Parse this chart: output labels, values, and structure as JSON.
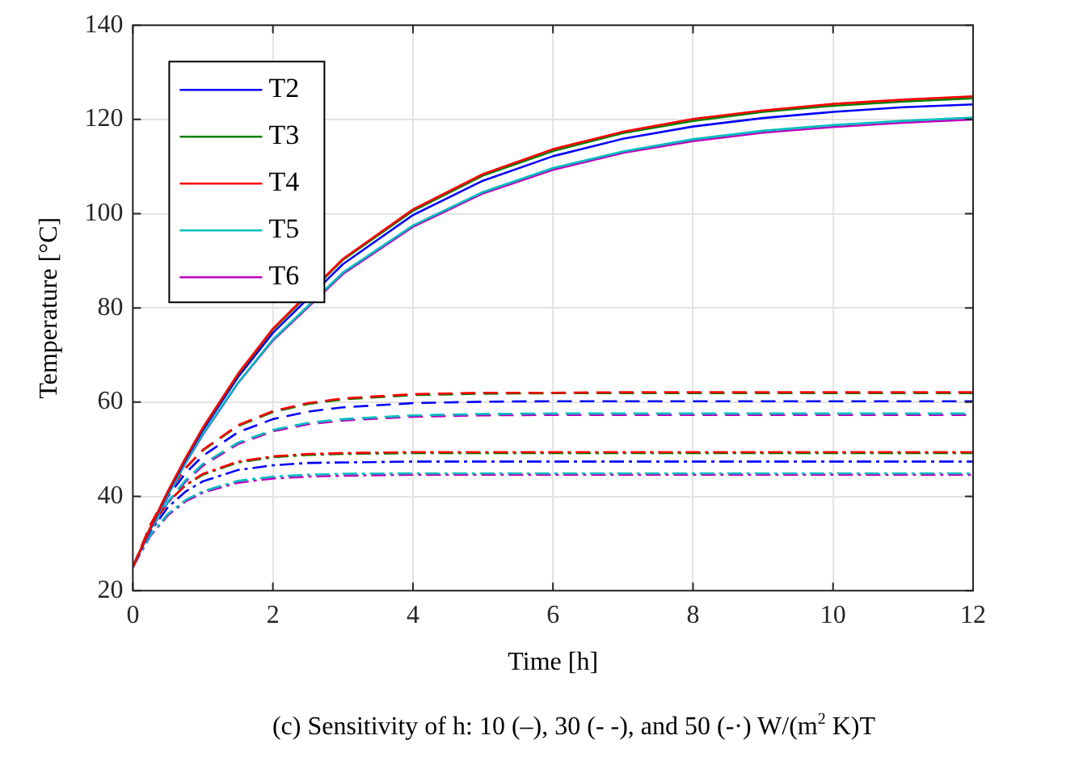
{
  "chart_data": {
    "type": "line",
    "xlabel": "Time [h]",
    "ylabel": "Temperature [°C]",
    "annotations": [
      "(c) Sensitivity of h: 10 (–), 30 (- -), and 50 (-·) W/(m$^{2}$ K)T"
    ],
    "x": [
      0,
      0.25,
      0.5,
      0.75,
      1,
      1.5,
      2,
      2.5,
      3,
      4,
      5,
      6,
      7,
      8,
      9,
      10,
      11,
      12
    ],
    "xlim": [
      0,
      12
    ],
    "xticks": [
      0,
      2,
      4,
      6,
      8,
      10,
      12
    ],
    "ylim": [
      20,
      140
    ],
    "yticks": [
      20,
      40,
      60,
      80,
      100,
      120,
      140
    ],
    "grid": true,
    "legend": "top left",
    "marker": "none",
    "series": [
      {
        "name": "T2",
        "color": "#0000ff",
        "line_style": "solid",
        "x": [
          0,
          0.25,
          0.5,
          0.75,
          1,
          1.5,
          2,
          3,
          4,
          5,
          6,
          7,
          8,
          9,
          10,
          11,
          12
        ],
        "values": [
          25,
          33.2,
          40.8,
          47.7,
          54.1,
          65.3,
          74.7,
          89.3,
          99.7,
          107.0,
          112.2,
          115.9,
          118.5,
          120.3,
          121.6,
          122.6,
          123.2
        ]
      },
      {
        "name": "T3",
        "color": "#008000",
        "line_style": "solid",
        "x": [
          0,
          0.25,
          0.5,
          0.75,
          1,
          1.5,
          2,
          3,
          4,
          5,
          6,
          7,
          8,
          9,
          10,
          11,
          12
        ],
        "values": [
          25,
          33.4,
          41.0,
          48.0,
          54.5,
          65.8,
          75.4,
          90.2,
          100.6,
          108.1,
          113.3,
          117.1,
          119.7,
          121.6,
          122.9,
          123.8,
          124.5
        ]
      },
      {
        "name": "T4",
        "color": "#ff0000",
        "line_style": "solid",
        "x": [
          0,
          0.25,
          0.5,
          0.75,
          1,
          1.5,
          2,
          3,
          4,
          5,
          6,
          7,
          8,
          9,
          10,
          11,
          12
        ],
        "values": [
          25,
          33.4,
          41.1,
          48.1,
          54.6,
          66.0,
          75.6,
          90.4,
          100.9,
          108.4,
          113.7,
          117.4,
          120.1,
          121.9,
          123.3,
          124.2,
          124.9
        ]
      },
      {
        "name": "T5",
        "color": "#00bfbf",
        "line_style": "solid",
        "x": [
          0,
          0.25,
          0.5,
          0.75,
          1,
          1.5,
          2,
          3,
          4,
          5,
          6,
          7,
          8,
          9,
          10,
          11,
          12
        ],
        "values": [
          25,
          33.0,
          40.3,
          47.1,
          53.3,
          64.1,
          73.3,
          87.5,
          97.5,
          104.6,
          109.7,
          113.2,
          115.8,
          117.6,
          118.8,
          119.7,
          120.4
        ]
      },
      {
        "name": "T6",
        "color": "#bf00bf",
        "line_style": "solid",
        "x": [
          0,
          0.25,
          0.5,
          0.75,
          1,
          1.5,
          2,
          3,
          4,
          5,
          6,
          7,
          8,
          9,
          10,
          11,
          12
        ],
        "values": [
          25,
          33.0,
          40.3,
          47.0,
          53.1,
          64.0,
          73.1,
          87.2,
          97.2,
          104.3,
          109.3,
          112.9,
          115.4,
          117.2,
          118.4,
          119.3,
          120.0
        ]
      },
      {
        "color": "#0000ff",
        "line_style": "dashed",
        "values": [
          25,
          33.5,
          40.0,
          44.9,
          48.6,
          53.6,
          56.4,
          58.0,
          58.9,
          59.8,
          60.1,
          60.2,
          60.2,
          60.2,
          60.2,
          60.2,
          60.2,
          60.2
        ]
      },
      {
        "color": "#008000",
        "line_style": "dashed",
        "values": [
          25,
          33.9,
          40.7,
          45.9,
          49.8,
          54.9,
          57.9,
          59.6,
          60.6,
          61.5,
          61.8,
          61.9,
          61.9,
          61.9,
          61.9,
          61.9,
          61.9,
          61.9
        ]
      },
      {
        "color": "#ff0000",
        "line_style": "dashed",
        "values": [
          25,
          34.0,
          40.8,
          46.0,
          49.9,
          55.1,
          58.1,
          59.8,
          60.8,
          61.7,
          62.0,
          62.0,
          62.1,
          62.1,
          62.1,
          62.1,
          62.1,
          62.1
        ]
      },
      {
        "color": "#00bfbf",
        "line_style": "dashed",
        "values": [
          25,
          32.9,
          38.9,
          43.4,
          46.9,
          51.4,
          54.1,
          55.6,
          56.4,
          57.2,
          57.5,
          57.6,
          57.6,
          57.6,
          57.6,
          57.6,
          57.6,
          57.6
        ]
      },
      {
        "color": "#bf00bf",
        "line_style": "dashed",
        "values": [
          25,
          32.8,
          38.7,
          43.1,
          46.5,
          51.1,
          53.8,
          55.3,
          56.1,
          56.9,
          57.2,
          57.3,
          57.3,
          57.3,
          57.3,
          57.3,
          57.3,
          57.3
        ]
      },
      {
        "color": "#0000ff",
        "line_style": "dashdot",
        "values": [
          25,
          32.6,
          37.7,
          41.0,
          43.2,
          45.6,
          46.6,
          47.1,
          47.2,
          47.4,
          47.4,
          47.4,
          47.4,
          47.4,
          47.4,
          47.4,
          47.4,
          47.4
        ]
      },
      {
        "color": "#008000",
        "line_style": "dashdot",
        "values": [
          25,
          33.2,
          38.7,
          42.3,
          44.6,
          47.2,
          48.3,
          48.8,
          49.0,
          49.2,
          49.2,
          49.2,
          49.2,
          49.2,
          49.2,
          49.2,
          49.2,
          49.2
        ]
      },
      {
        "color": "#ff0000",
        "line_style": "dashdot",
        "values": [
          25,
          33.3,
          38.8,
          42.4,
          44.8,
          47.4,
          48.5,
          49.0,
          49.2,
          49.4,
          49.4,
          49.4,
          49.4,
          49.4,
          49.4,
          49.4,
          49.4,
          49.4
        ]
      },
      {
        "color": "#00bfbf",
        "line_style": "dashdot",
        "values": [
          25,
          31.8,
          36.3,
          39.2,
          41.1,
          43.3,
          44.2,
          44.6,
          44.8,
          44.9,
          44.9,
          44.9,
          44.9,
          44.9,
          44.9,
          44.9,
          44.9,
          44.9
        ]
      },
      {
        "color": "#bf00bf",
        "line_style": "dashdot",
        "values": [
          25,
          31.6,
          36.0,
          38.9,
          40.8,
          42.9,
          43.8,
          44.2,
          44.4,
          44.6,
          44.6,
          44.6,
          44.6,
          44.6,
          44.6,
          44.6,
          44.6,
          44.6
        ]
      }
    ]
  }
}
